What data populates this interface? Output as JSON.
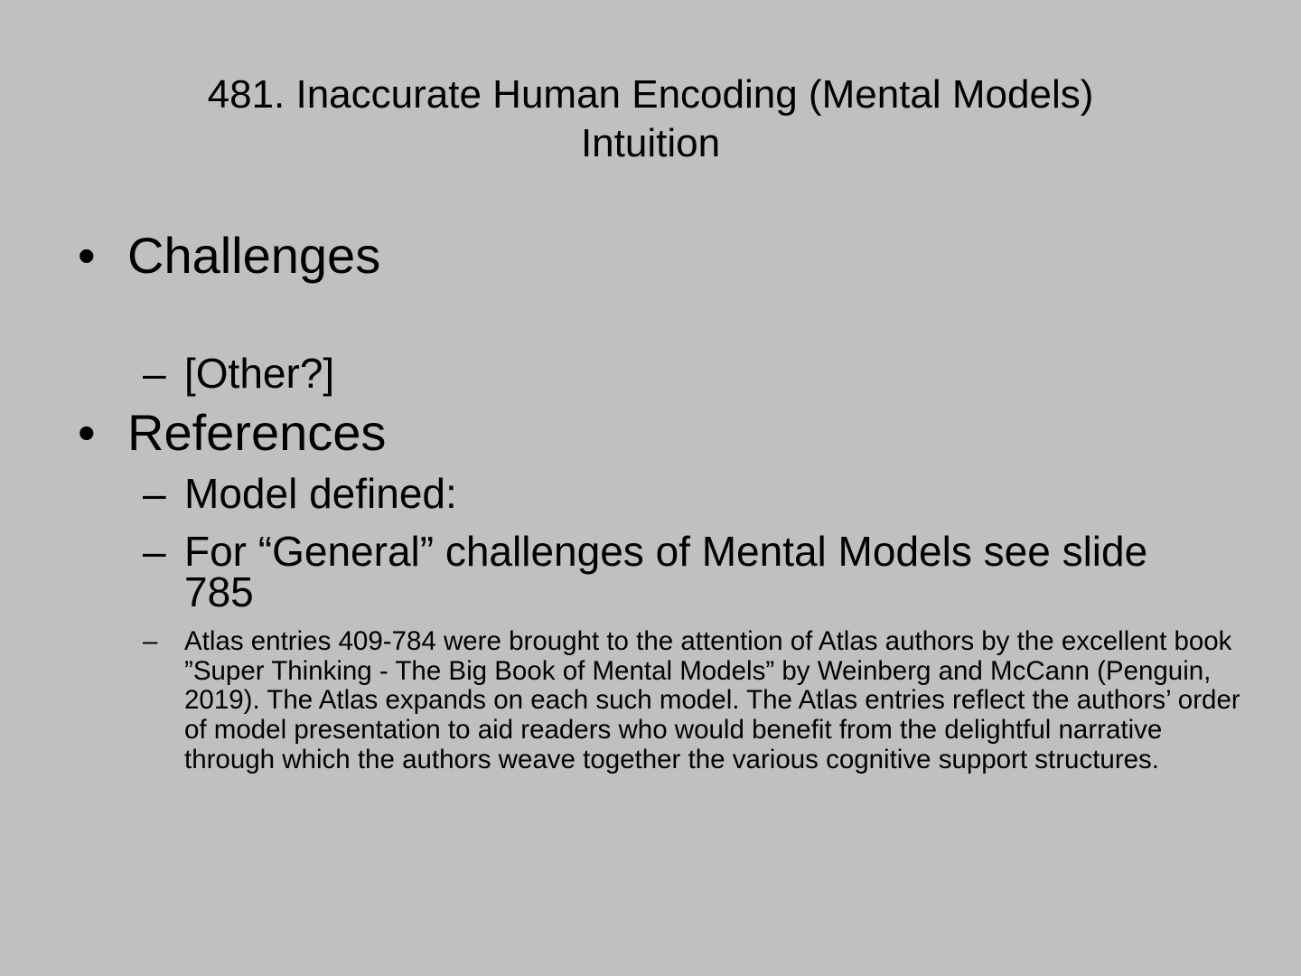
{
  "slide": {
    "title_line1": "481. Inaccurate Human Encoding (Mental Models)",
    "title_line2": "Intuition",
    "bullet_marker": "•",
    "dash_marker": "–",
    "challenges": {
      "label": "Challenges",
      "items": [
        "[Other?]"
      ]
    },
    "references": {
      "label": "References",
      "items": [
        "Model defined:",
        "For “General” challenges of Mental Models see slide 785"
      ],
      "note": "Atlas entries 409-784 were brought to the attention of Atlas authors by the excellent book  ”Super Thinking - The Big Book of Mental Models” by Weinberg and McCann (Penguin, 2019).  The Atlas expands on each such model. The Atlas entries reflect the authors’ order of model presentation to aid readers who would benefit from the delightful narrative through which the authors weave together the various cognitive support structures."
    }
  }
}
